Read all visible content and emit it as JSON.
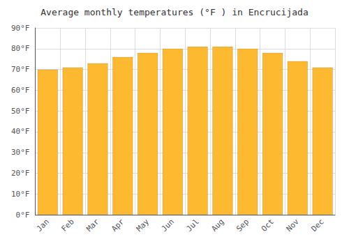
{
  "chart_data": {
    "type": "bar",
    "title": "Average monthly temperatures (°F ) in Encrucijada",
    "categories": [
      "Jan",
      "Feb",
      "Mar",
      "Apr",
      "May",
      "Jun",
      "Jul",
      "Aug",
      "Sep",
      "Oct",
      "Nov",
      "Dec"
    ],
    "values": [
      70,
      71,
      73,
      76,
      78,
      80,
      81,
      81,
      80,
      78,
      74,
      71
    ],
    "color": "#FDB930",
    "ylim": [
      0,
      90
    ],
    "yticks": [
      {
        "value": 0,
        "label": "0°F"
      },
      {
        "value": 10,
        "label": "10°F"
      },
      {
        "value": 20,
        "label": "20°F"
      },
      {
        "value": 30,
        "label": "30°F"
      },
      {
        "value": 40,
        "label": "40°F"
      },
      {
        "value": 50,
        "label": "50°F"
      },
      {
        "value": 60,
        "label": "60°F"
      },
      {
        "value": 70,
        "label": "70°F"
      },
      {
        "value": 80,
        "label": "80°F"
      },
      {
        "value": 90,
        "label": "90°F"
      }
    ],
    "grid": true
  }
}
